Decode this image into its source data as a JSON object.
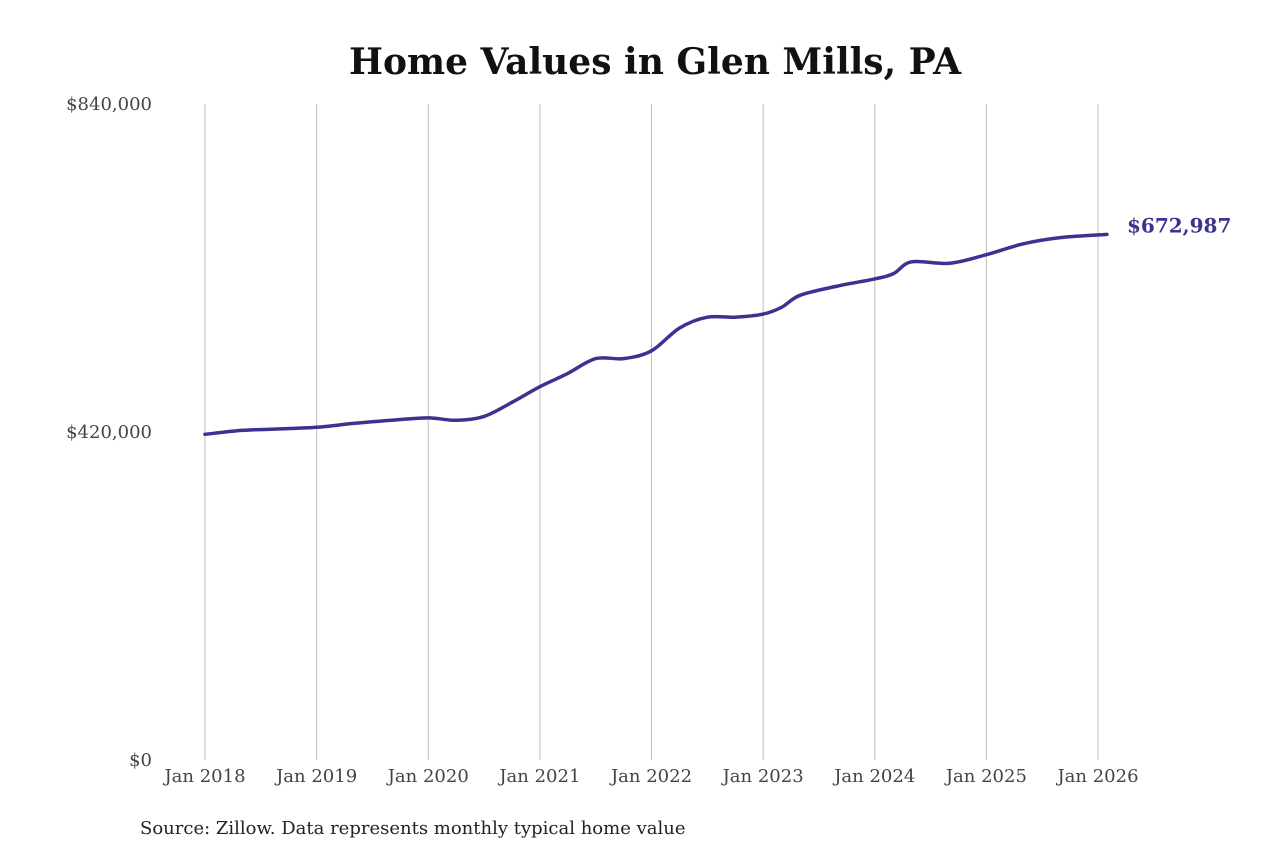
{
  "chart_data": {
    "type": "line",
    "title": "Home Values in Glen Mills, PA",
    "xlabel": "",
    "ylabel": "",
    "source": "Source: Zillow. Data represents monthly typical home value",
    "ylim": [
      0,
      840000
    ],
    "yticks": [
      {
        "value": 0,
        "label": "$0"
      },
      {
        "value": 420000,
        "label": "$420,000"
      },
      {
        "value": 840000,
        "label": "$840,000"
      }
    ],
    "xticks": [
      {
        "year": 2018,
        "label": "Jan 2018"
      },
      {
        "year": 2019,
        "label": "Jan 2019"
      },
      {
        "year": 2020,
        "label": "Jan 2020"
      },
      {
        "year": 2021,
        "label": "Jan 2021"
      },
      {
        "year": 2022,
        "label": "Jan 2022"
      },
      {
        "year": 2023,
        "label": "Jan 2023"
      },
      {
        "year": 2024,
        "label": "Jan 2024"
      },
      {
        "year": 2025,
        "label": "Jan 2025"
      },
      {
        "year": 2026,
        "label": "Jan 2026"
      }
    ],
    "xlim": [
      2018,
      2026.1
    ],
    "grid_vertical": true,
    "line_color": "#3b3391",
    "end_label": "$672,987",
    "series": [
      {
        "points": [
          [
            2018.0,
            417000
          ],
          [
            2018.33,
            422000
          ],
          [
            2018.67,
            424000
          ],
          [
            2019.0,
            426000
          ],
          [
            2019.33,
            431000
          ],
          [
            2019.67,
            435000
          ],
          [
            2020.0,
            438000
          ],
          [
            2020.25,
            435000
          ],
          [
            2020.5,
            440000
          ],
          [
            2020.75,
            458000
          ],
          [
            2021.0,
            478000
          ],
          [
            2021.25,
            495000
          ],
          [
            2021.5,
            514000
          ],
          [
            2021.75,
            514000
          ],
          [
            2022.0,
            524000
          ],
          [
            2022.25,
            553000
          ],
          [
            2022.5,
            567000
          ],
          [
            2022.75,
            567000
          ],
          [
            2023.0,
            571000
          ],
          [
            2023.17,
            580000
          ],
          [
            2023.33,
            595000
          ],
          [
            2023.67,
            607000
          ],
          [
            2024.0,
            616000
          ],
          [
            2024.17,
            623000
          ],
          [
            2024.33,
            638000
          ],
          [
            2024.67,
            636000
          ],
          [
            2025.0,
            647000
          ],
          [
            2025.33,
            661000
          ],
          [
            2025.67,
            669000
          ],
          [
            2026.08,
            672987
          ]
        ]
      }
    ]
  }
}
